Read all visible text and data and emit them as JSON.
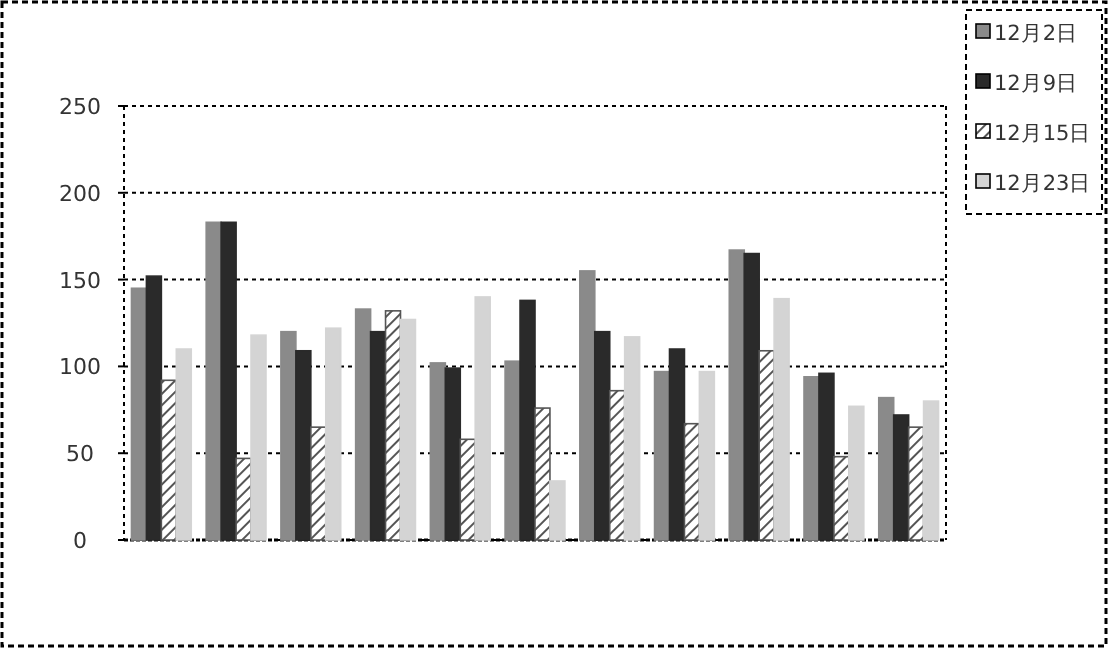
{
  "chart_data": {
    "type": "bar",
    "categories": [
      null,
      null,
      null,
      null,
      null,
      null,
      null,
      null,
      null,
      null,
      null
    ],
    "series": [
      {
        "name": "12月2日",
        "color": "#8a8a8a",
        "values": [
          145,
          183,
          120,
          133,
          102,
          103,
          155,
          97,
          167,
          94,
          82
        ]
      },
      {
        "name": "12月9日",
        "color": "#2a2a2a",
        "values": [
          152,
          183,
          109,
          120,
          99,
          138,
          120,
          110,
          165,
          96,
          72
        ]
      },
      {
        "name": "12月15日",
        "color": "#555555",
        "values": [
          92,
          47,
          65,
          132,
          58,
          76,
          86,
          67,
          109,
          48,
          65
        ]
      },
      {
        "name": "12月23日",
        "color": "#d4d4d4",
        "values": [
          110,
          118,
          122,
          127,
          140,
          34,
          117,
          97,
          139,
          77,
          80
        ]
      }
    ],
    "ylim": [
      0,
      250
    ],
    "yticks": [
      0,
      50,
      100,
      150,
      200,
      250
    ],
    "grid": "y",
    "legend": "top right"
  }
}
